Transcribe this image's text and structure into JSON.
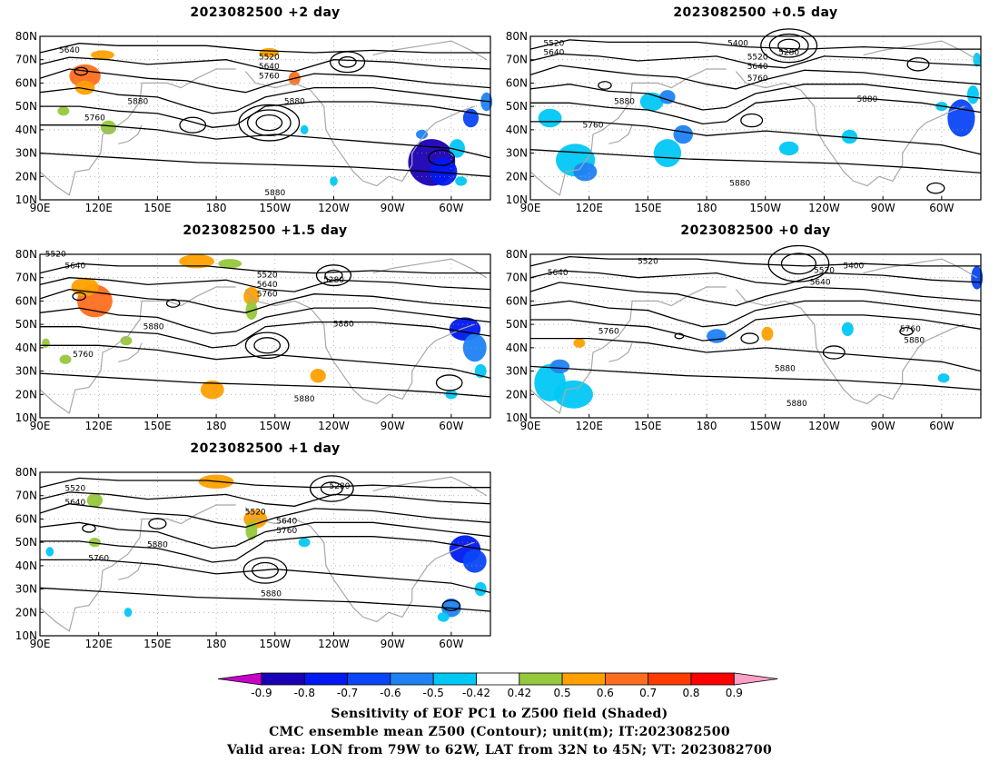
{
  "panels": [
    {
      "title": "2023082500 +2 day",
      "pos": "top-left",
      "contour_labels": [
        "5640",
        "5520",
        "5640",
        "5760",
        "5760",
        "5880",
        "5880",
        "5880"
      ]
    },
    {
      "title": "2023082500 +0.5 day",
      "pos": "top-right",
      "contour_labels": [
        "5520",
        "5640",
        "5400",
        "5280",
        "5520",
        "5640",
        "5760",
        "5880",
        "5760",
        "5880",
        "5880"
      ]
    },
    {
      "title": "2023082500 +1.5 day",
      "pos": "middle-left",
      "contour_labels": [
        "5520",
        "5640",
        "5520",
        "5640",
        "5760",
        "5280",
        "5880",
        "5760",
        "5880",
        "5880"
      ]
    },
    {
      "title": "2023082500 +0 day",
      "pos": "middle-right",
      "contour_labels": [
        "5640",
        "5520",
        "5520",
        "5400",
        "5640",
        "5760",
        "5760",
        "5880",
        "5880",
        "5880"
      ]
    },
    {
      "title": "2023082500 +1 day",
      "pos": "bottom-left",
      "contour_labels": [
        "5520",
        "5640",
        "5520",
        "5280",
        "5640",
        "5760",
        "5880",
        "5760",
        "5880"
      ]
    }
  ],
  "axes": {
    "lon_labels": [
      "90E",
      "120E",
      "150E",
      "180",
      "150W",
      "120W",
      "90W",
      "60W"
    ],
    "lat_labels": [
      "10N",
      "20N",
      "30N",
      "40N",
      "50N",
      "60N",
      "70N",
      "80N"
    ],
    "lon_range": [
      90,
      320
    ],
    "lat_range": [
      10,
      80
    ]
  },
  "colorbar": {
    "labels": [
      "-0.9",
      "-0.8",
      "-0.7",
      "-0.6",
      "-0.5",
      "-0.42",
      "0.42",
      "0.5",
      "0.6",
      "0.7",
      "0.8",
      "0.9"
    ],
    "colors": [
      "#1a00b4",
      "#0019f0",
      "#0a46f5",
      "#1e82f5",
      "#00c8f5",
      "#ffffff",
      "#96c83c",
      "#ffa000",
      "#ff6e1e",
      "#ff3c00",
      "#ff0000"
    ],
    "low_color": "#c800c8",
    "high_color": "#ffa0c8"
  },
  "caption": {
    "line1": "Sensitivity of EOF PC1 to Z500 field (Shaded)",
    "line2": "CMC ensemble mean Z500 (Contour); unit(m); IT:2023082500",
    "line3": "Valid area: LON from 79W to 62W, LAT from 32N to 45N; VT: 2023082700"
  }
}
